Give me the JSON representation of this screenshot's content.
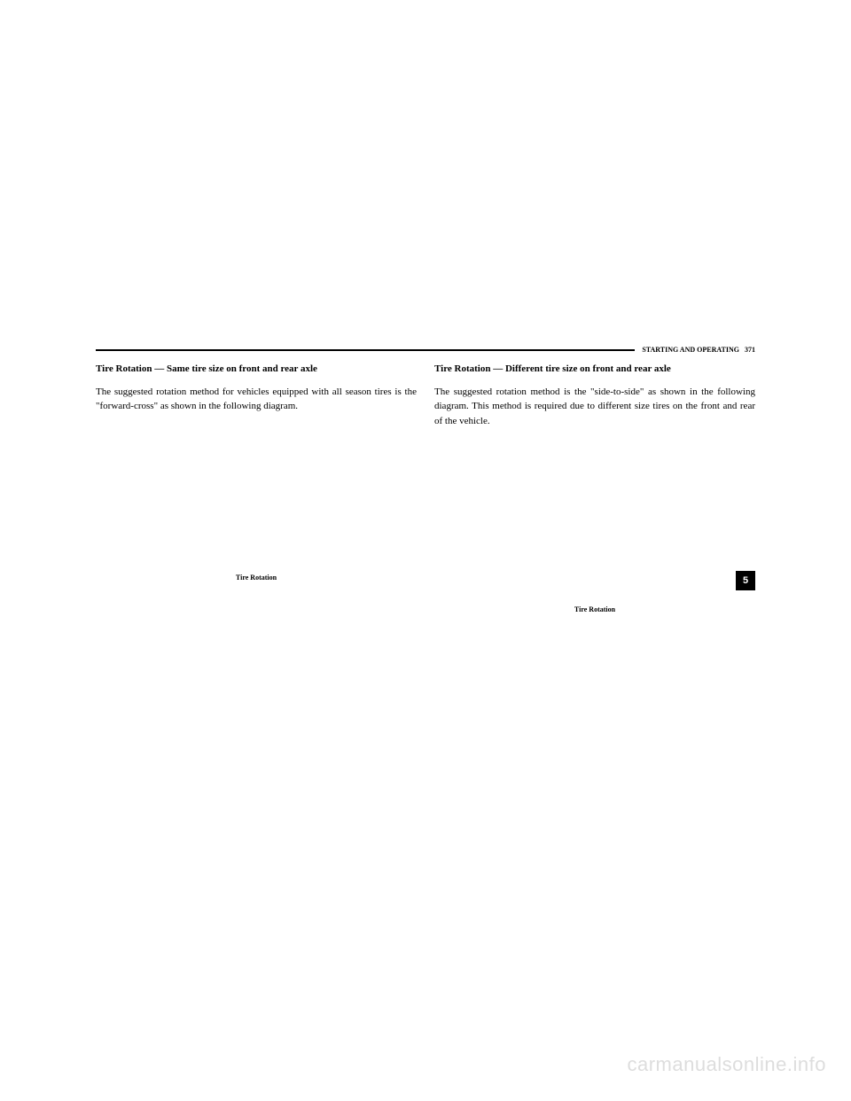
{
  "header": {
    "section_name": "STARTING AND OPERATING",
    "page_number": "371"
  },
  "left_column": {
    "heading": "Tire Rotation — Same tire size on front and rear axle",
    "body": "The suggested rotation method for vehicles equipped with all season tires is the \"forward-cross\" as shown in the following diagram.",
    "caption": "Tire Rotation"
  },
  "right_column": {
    "heading": "Tire Rotation — Different tire size on front and rear axle",
    "body": "The suggested rotation method is the \"side-to-side\" as shown in the following diagram. This method is required due to different size tires on the front and rear of the vehicle.",
    "caption": "Tire Rotation"
  },
  "tab": {
    "number": "5"
  },
  "watermark": {
    "text": "carmanualsonline.info"
  }
}
